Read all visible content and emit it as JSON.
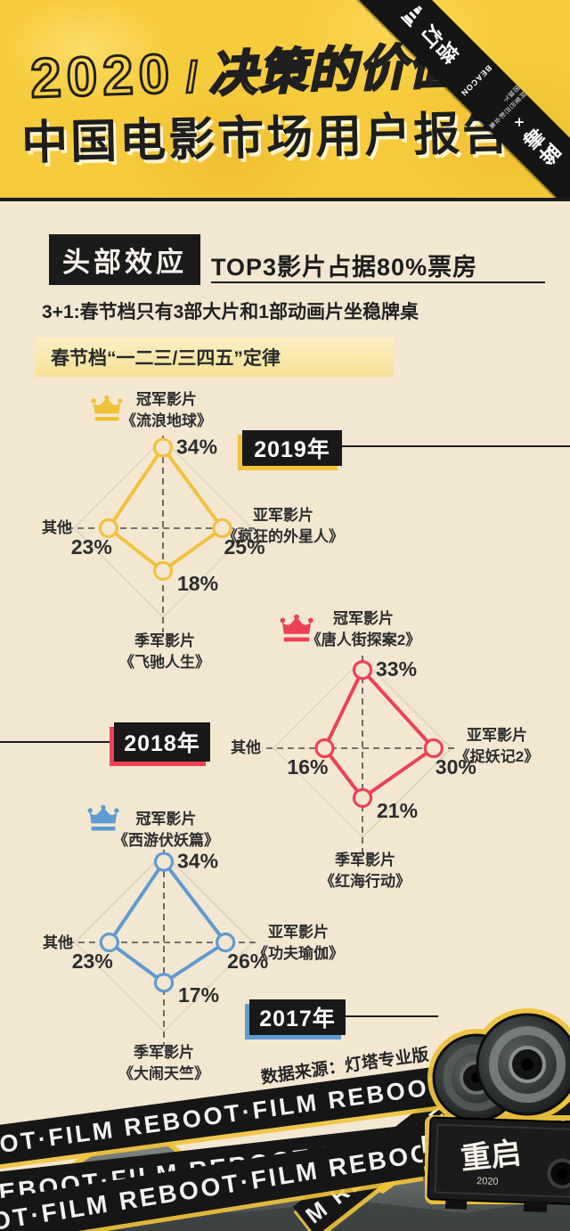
{
  "header": {
    "title_year": "2020",
    "title_slash": "/",
    "title_phrase": "决策的价值",
    "title_main": "中国电影市场用户报告",
    "ribbon": {
      "brand1": "灯塔",
      "brand1_en": "BEACON",
      "tagline": "阿里巴巴影业集团旗下",
      "times": "×",
      "brand2": "毒眸"
    }
  },
  "section": {
    "badge": "头部效应",
    "headline": "TOP3影片占据80%票房",
    "subtitle": "3+1:春节档只有3部大片和1部动画片坐稳牌桌",
    "highlight": "春节档“一二三/三四五”定律"
  },
  "source_note": "数据来源：灯塔专业版",
  "footer": {
    "strip_text": "REBOOT·FILM",
    "projector_text": "重启",
    "projector_year": "2020"
  },
  "colors": {
    "cream_background": "#F3E7D1",
    "header_yellow": "#F6CB3C",
    "black": "#1b1b1b",
    "chart_2019": "#F0C23C",
    "chart_2018": "#EE4156",
    "chart_2017": "#5E9BD3"
  },
  "chart_data": [
    {
      "type": "radar",
      "year": "2019年",
      "color": "#F0C23C",
      "value_unit": "%",
      "axes": {
        "top": {
          "label": "冠军影片",
          "film": "《流浪地球》",
          "value": 34,
          "value_label": "34%"
        },
        "right": {
          "label": "亚军影片",
          "film": "《疯狂的外星人》",
          "value": 25,
          "value_label": "25%"
        },
        "bottom": {
          "label": "季军影片",
          "film": "《飞驰人生》",
          "value": 18,
          "value_label": "18%"
        },
        "left": {
          "label": "其他",
          "film": "",
          "value": 23,
          "value_label": "23%"
        }
      }
    },
    {
      "type": "radar",
      "year": "2018年",
      "color": "#EE4156",
      "value_unit": "%",
      "axes": {
        "top": {
          "label": "冠军影片",
          "film": "《唐人街探案2》",
          "value": 33,
          "value_label": "33%"
        },
        "right": {
          "label": "亚军影片",
          "film": "《捉妖记2》",
          "value": 30,
          "value_label": "30%"
        },
        "bottom": {
          "label": "季军影片",
          "film": "《红海行动》",
          "value": 21,
          "value_label": "21%"
        },
        "left": {
          "label": "其他",
          "film": "",
          "value": 16,
          "value_label": "16%"
        }
      }
    },
    {
      "type": "radar",
      "year": "2017年",
      "color": "#5E9BD3",
      "value_unit": "%",
      "axes": {
        "top": {
          "label": "冠军影片",
          "film": "《西游伏妖篇》",
          "value": 34,
          "value_label": "34%"
        },
        "right": {
          "label": "亚军影片",
          "film": "《功夫瑜伽》",
          "value": 26,
          "value_label": "26%"
        },
        "bottom": {
          "label": "季军影片",
          "film": "《大闹天竺》",
          "value": 17,
          "value_label": "17%"
        },
        "left": {
          "label": "其他",
          "film": "",
          "value": 23,
          "value_label": "23%"
        }
      }
    }
  ]
}
